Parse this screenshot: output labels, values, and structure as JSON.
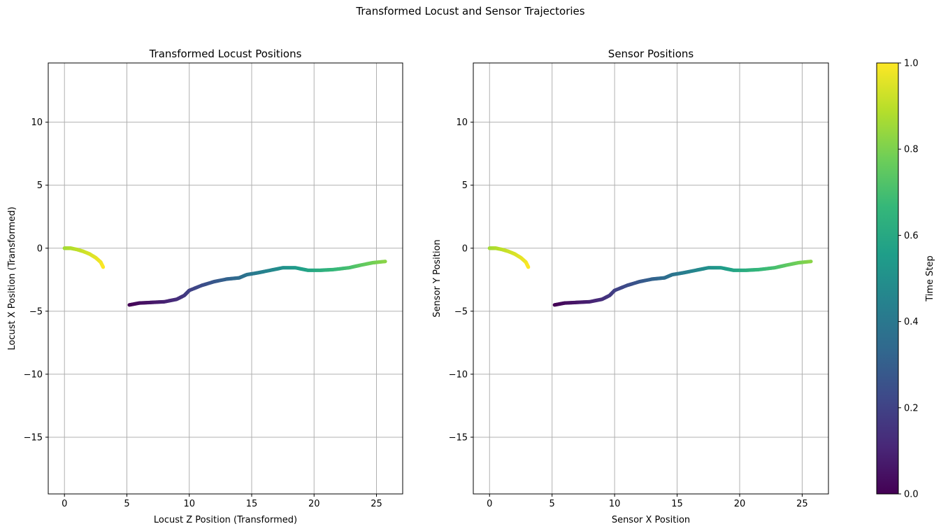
{
  "figure": {
    "suptitle": "Transformed Locust and Sensor Trajectories"
  },
  "chart_data": [
    {
      "type": "scatter",
      "title": "Transformed Locust Positions",
      "xlabel": "Locust Z Position (Transformed)",
      "ylabel": "Locust X Position (Transformed)",
      "xlim": [
        -1.3,
        27.1
      ],
      "ylim": [
        -19.5,
        14.7
      ],
      "xticks": [
        0,
        5,
        10,
        15,
        20,
        25
      ],
      "yticks": [
        -15,
        -10,
        -5,
        0,
        5,
        10
      ],
      "xtick_labels": [
        "0",
        "5",
        "10",
        "15",
        "20",
        "25"
      ],
      "ytick_labels": [
        "−15",
        "−10",
        "−5",
        "0",
        "5",
        "10"
      ],
      "grid": true,
      "color_by": "Time Step",
      "colormap": "viridis",
      "points": [
        {
          "x": 5.2,
          "y": -4.5,
          "t": 0.0
        },
        {
          "x": 6.0,
          "y": -4.35,
          "t": 0.03
        },
        {
          "x": 7.0,
          "y": -4.3,
          "t": 0.06
        },
        {
          "x": 8.0,
          "y": -4.25,
          "t": 0.09
        },
        {
          "x": 9.0,
          "y": -4.05,
          "t": 0.13
        },
        {
          "x": 9.6,
          "y": -3.75,
          "t": 0.16
        },
        {
          "x": 10.0,
          "y": -3.35,
          "t": 0.19
        },
        {
          "x": 11.0,
          "y": -2.95,
          "t": 0.23
        },
        {
          "x": 12.0,
          "y": -2.65,
          "t": 0.27
        },
        {
          "x": 13.0,
          "y": -2.45,
          "t": 0.31
        },
        {
          "x": 14.0,
          "y": -2.35,
          "t": 0.35
        },
        {
          "x": 14.6,
          "y": -2.1,
          "t": 0.38
        },
        {
          "x": 15.5,
          "y": -1.95,
          "t": 0.42
        },
        {
          "x": 16.5,
          "y": -1.75,
          "t": 0.46
        },
        {
          "x": 17.5,
          "y": -1.55,
          "t": 0.5
        },
        {
          "x": 18.5,
          "y": -1.55,
          "t": 0.54
        },
        {
          "x": 19.5,
          "y": -1.75,
          "t": 0.58
        },
        {
          "x": 20.5,
          "y": -1.75,
          "t": 0.62
        },
        {
          "x": 21.5,
          "y": -1.7,
          "t": 0.66
        },
        {
          "x": 22.8,
          "y": -1.55,
          "t": 0.7
        },
        {
          "x": 23.7,
          "y": -1.35,
          "t": 0.74
        },
        {
          "x": 24.7,
          "y": -1.15,
          "t": 0.78
        },
        {
          "x": 25.7,
          "y": -1.05,
          "t": 0.82
        },
        {
          "x": 0.0,
          "y": 0.0,
          "t": 0.86
        },
        {
          "x": 0.5,
          "y": 0.0,
          "t": 0.88
        },
        {
          "x": 1.0,
          "y": -0.1,
          "t": 0.9
        },
        {
          "x": 1.5,
          "y": -0.25,
          "t": 0.92
        },
        {
          "x": 2.0,
          "y": -0.45,
          "t": 0.94
        },
        {
          "x": 2.5,
          "y": -0.75,
          "t": 0.96
        },
        {
          "x": 2.9,
          "y": -1.1,
          "t": 0.98
        },
        {
          "x": 3.1,
          "y": -1.5,
          "t": 1.0
        }
      ]
    },
    {
      "type": "scatter",
      "title": "Sensor Positions",
      "xlabel": "Sensor X Position",
      "ylabel": "Sensor Y Position",
      "xlim": [
        -1.3,
        27.1
      ],
      "ylim": [
        -19.5,
        14.7
      ],
      "xticks": [
        0,
        5,
        10,
        15,
        20,
        25
      ],
      "yticks": [
        -15,
        -10,
        -5,
        0,
        5,
        10
      ],
      "xtick_labels": [
        "0",
        "5",
        "10",
        "15",
        "20",
        "25"
      ],
      "ytick_labels": [
        "−15",
        "−10",
        "−5",
        "0",
        "5",
        "10"
      ],
      "grid": true,
      "color_by": "Time Step",
      "colormap": "viridis",
      "points": [
        {
          "x": 5.2,
          "y": -4.5,
          "t": 0.0
        },
        {
          "x": 6.0,
          "y": -4.35,
          "t": 0.03
        },
        {
          "x": 7.0,
          "y": -4.3,
          "t": 0.06
        },
        {
          "x": 8.0,
          "y": -4.25,
          "t": 0.09
        },
        {
          "x": 9.0,
          "y": -4.05,
          "t": 0.13
        },
        {
          "x": 9.6,
          "y": -3.75,
          "t": 0.16
        },
        {
          "x": 10.0,
          "y": -3.35,
          "t": 0.19
        },
        {
          "x": 11.0,
          "y": -2.95,
          "t": 0.23
        },
        {
          "x": 12.0,
          "y": -2.65,
          "t": 0.27
        },
        {
          "x": 13.0,
          "y": -2.45,
          "t": 0.31
        },
        {
          "x": 14.0,
          "y": -2.35,
          "t": 0.35
        },
        {
          "x": 14.6,
          "y": -2.1,
          "t": 0.38
        },
        {
          "x": 15.5,
          "y": -1.95,
          "t": 0.42
        },
        {
          "x": 16.5,
          "y": -1.75,
          "t": 0.46
        },
        {
          "x": 17.5,
          "y": -1.55,
          "t": 0.5
        },
        {
          "x": 18.5,
          "y": -1.55,
          "t": 0.54
        },
        {
          "x": 19.5,
          "y": -1.75,
          "t": 0.58
        },
        {
          "x": 20.5,
          "y": -1.75,
          "t": 0.62
        },
        {
          "x": 21.5,
          "y": -1.7,
          "t": 0.66
        },
        {
          "x": 22.8,
          "y": -1.55,
          "t": 0.7
        },
        {
          "x": 23.7,
          "y": -1.35,
          "t": 0.74
        },
        {
          "x": 24.7,
          "y": -1.15,
          "t": 0.78
        },
        {
          "x": 25.7,
          "y": -1.05,
          "t": 0.82
        },
        {
          "x": 0.0,
          "y": 0.0,
          "t": 0.86
        },
        {
          "x": 0.5,
          "y": 0.0,
          "t": 0.88
        },
        {
          "x": 1.0,
          "y": -0.1,
          "t": 0.9
        },
        {
          "x": 1.5,
          "y": -0.25,
          "t": 0.92
        },
        {
          "x": 2.0,
          "y": -0.45,
          "t": 0.94
        },
        {
          "x": 2.5,
          "y": -0.75,
          "t": 0.96
        },
        {
          "x": 2.9,
          "y": -1.1,
          "t": 0.98
        },
        {
          "x": 3.1,
          "y": -1.5,
          "t": 1.0
        }
      ]
    }
  ],
  "colorbar": {
    "label": "Time Step",
    "colormap": "viridis",
    "range": [
      0,
      1
    ],
    "ticks": [
      0.0,
      0.2,
      0.4,
      0.6,
      0.8,
      1.0
    ],
    "tick_labels": [
      "0.0",
      "0.2",
      "0.4",
      "0.6",
      "0.8",
      "1.0"
    ],
    "colors": [
      "#440154",
      "#482878",
      "#3e4989",
      "#31688e",
      "#26828e",
      "#1f9e89",
      "#35b779",
      "#6ece58",
      "#b5de2b",
      "#fde725"
    ]
  },
  "style": {
    "grid_color": "#b0b0b0",
    "axis_color": "#000000"
  }
}
